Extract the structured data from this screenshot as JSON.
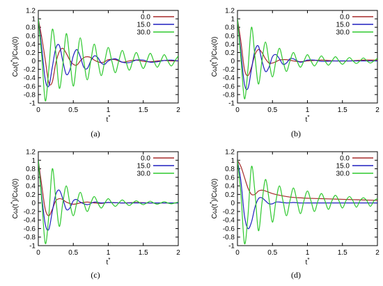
{
  "chart_data": [
    {
      "panel": "(a)",
      "type": "line",
      "xlabel": "t*",
      "ylabel": "Cω(t*)/Cω(0)",
      "xlim": [
        0,
        2
      ],
      "ylim": [
        -1,
        1.2
      ],
      "x_ticks": [
        "0",
        "0.5",
        "1",
        "1.5",
        "2"
      ],
      "y_ticks": [
        "-1",
        "-0.8",
        "-0.6",
        "-0.4",
        "-0.2",
        "0",
        "0.2",
        "0.4",
        "0.6",
        "0.8",
        "1",
        "1.2"
      ],
      "legend_position": "top-right",
      "grid": false,
      "series": [
        {
          "name": "0.0",
          "color": "#a52a2a",
          "x": [
            0,
            0.05,
            0.1,
            0.15,
            0.2,
            0.25,
            0.3,
            0.35,
            0.4,
            0.45,
            0.5,
            0.55,
            0.6,
            0.65,
            0.7,
            0.75,
            0.8,
            0.85,
            0.9,
            0.95,
            1,
            1.1,
            1.2,
            1.3,
            1.4,
            1.5,
            1.6,
            1.7,
            1.8,
            1.9,
            2
          ],
          "y": [
            1,
            0.55,
            0.02,
            -0.52,
            -0.5,
            -0.05,
            0.22,
            0.3,
            0.18,
            0.02,
            -0.08,
            -0.1,
            0.0,
            0.08,
            0.1,
            0.08,
            0.02,
            -0.02,
            -0.04,
            -0.02,
            0.03,
            0.03,
            -0.03,
            0.0,
            0.02,
            -0.01,
            -0.02,
            0.0,
            0.01,
            0.0,
            0.0
          ]
        },
        {
          "name": "15.0",
          "color": "#1f1fbf",
          "x": [
            0,
            0.05,
            0.1,
            0.15,
            0.2,
            0.25,
            0.3,
            0.35,
            0.4,
            0.45,
            0.5,
            0.55,
            0.6,
            0.65,
            0.7,
            0.75,
            0.8,
            0.85,
            0.9,
            0.95,
            1,
            1.1,
            1.2,
            1.3,
            1.4,
            1.5,
            1.6,
            1.7,
            1.8,
            1.9,
            2
          ],
          "y": [
            1,
            0.3,
            -0.45,
            -0.6,
            -0.15,
            0.3,
            0.37,
            0.0,
            -0.32,
            -0.22,
            0.12,
            0.27,
            0.1,
            -0.15,
            -0.18,
            0.0,
            0.12,
            0.08,
            -0.05,
            -0.08,
            0.0,
            0.05,
            -0.03,
            -0.04,
            0.02,
            0.02,
            -0.03,
            -0.02,
            0.01,
            0.02,
            0.0
          ]
        },
        {
          "name": "30.0",
          "color": "#2ec82e",
          "x": [
            0,
            0.05,
            0.1,
            0.15,
            0.2,
            0.25,
            0.3,
            0.35,
            0.4,
            0.45,
            0.5,
            0.55,
            0.6,
            0.65,
            0.7,
            0.75,
            0.8,
            0.85,
            0.9,
            0.95,
            1,
            1.05,
            1.1,
            1.15,
            1.2,
            1.25,
            1.3,
            1.35,
            1.4,
            1.45,
            1.5,
            1.55,
            1.6,
            1.65,
            1.7,
            1.75,
            1.8,
            1.85,
            1.9,
            1.95,
            2
          ],
          "y": [
            1,
            0.1,
            -0.95,
            -0.2,
            0.75,
            0.2,
            -0.65,
            -0.1,
            0.65,
            0.05,
            -0.6,
            0.0,
            0.55,
            0.0,
            -0.45,
            0.0,
            0.4,
            0.0,
            -0.35,
            0.0,
            0.32,
            0.0,
            -0.28,
            0.0,
            0.25,
            0.0,
            -0.22,
            0.0,
            0.2,
            0.0,
            -0.18,
            0.0,
            0.18,
            0.0,
            -0.15,
            0.0,
            0.15,
            0.0,
            -0.12,
            0.0,
            0.12
          ]
        }
      ]
    },
    {
      "panel": "(b)",
      "type": "line",
      "xlabel": "t*",
      "ylabel": "Cω(t*)/Cω(0)",
      "xlim": [
        0,
        2
      ],
      "ylim": [
        -1,
        1.2
      ],
      "x_ticks": [
        "0",
        "0.5",
        "1",
        "1.5",
        "2"
      ],
      "y_ticks": [
        "-1",
        "-0.8",
        "-0.6",
        "-0.4",
        "-0.2",
        "0",
        "0.2",
        "0.4",
        "0.6",
        "0.8",
        "1",
        "1.2"
      ],
      "legend_position": "top-right",
      "grid": false,
      "series": [
        {
          "name": "0.0",
          "color": "#a52a2a",
          "x": [
            0,
            0.05,
            0.1,
            0.15,
            0.2,
            0.25,
            0.3,
            0.35,
            0.4,
            0.45,
            0.5,
            0.55,
            0.6,
            0.7,
            0.8,
            0.9,
            1,
            1.2,
            1.4,
            1.6,
            1.8,
            2
          ],
          "y": [
            1,
            0.45,
            -0.2,
            -0.35,
            -0.15,
            0.15,
            0.27,
            0.2,
            0.05,
            -0.05,
            -0.05,
            -0.02,
            0.02,
            0.03,
            0.0,
            -0.02,
            0.0,
            0.02,
            0.0,
            0.0,
            0.02,
            0.02
          ]
        },
        {
          "name": "15.0",
          "color": "#1f1fbf",
          "x": [
            0,
            0.05,
            0.1,
            0.15,
            0.2,
            0.25,
            0.3,
            0.35,
            0.4,
            0.45,
            0.5,
            0.55,
            0.6,
            0.65,
            0.7,
            0.75,
            0.8,
            0.9,
            1,
            1.1,
            1.2,
            1.4,
            1.6,
            1.8,
            2
          ],
          "y": [
            1,
            0.2,
            -0.55,
            -0.65,
            -0.2,
            0.25,
            0.35,
            0.0,
            -0.25,
            -0.15,
            0.1,
            0.15,
            0.05,
            -0.08,
            -0.05,
            0.05,
            0.05,
            -0.03,
            0.02,
            0.02,
            -0.01,
            0.0,
            0.0,
            0.0,
            0.0
          ]
        },
        {
          "name": "30.0",
          "color": "#2ec82e",
          "x": [
            0,
            0.05,
            0.1,
            0.15,
            0.2,
            0.25,
            0.3,
            0.35,
            0.4,
            0.45,
            0.5,
            0.55,
            0.6,
            0.65,
            0.7,
            0.75,
            0.8,
            0.85,
            0.9,
            0.95,
            1,
            1.05,
            1.1,
            1.15,
            1.2,
            1.25,
            1.3,
            1.35,
            1.4,
            1.45,
            1.5,
            1.55,
            1.6,
            1.65,
            1.7,
            1.75,
            1.8,
            1.85,
            1.9,
            1.95,
            2
          ],
          "y": [
            1,
            0.05,
            -0.9,
            -0.2,
            0.8,
            0.1,
            -0.55,
            0.0,
            0.45,
            0.0,
            -0.38,
            0.0,
            0.3,
            0.0,
            -0.25,
            0.0,
            0.2,
            0.0,
            -0.15,
            0.0,
            0.15,
            0.0,
            -0.12,
            0.0,
            0.12,
            0.0,
            -0.1,
            0.0,
            0.1,
            0.0,
            -0.08,
            0.0,
            0.08,
            0.0,
            -0.06,
            0.0,
            0.07,
            0.0,
            -0.05,
            0.0,
            0.06
          ]
        }
      ]
    },
    {
      "panel": "(c)",
      "type": "line",
      "xlabel": "t*",
      "ylabel": "Cω(t*)/Cω(0)",
      "xlim": [
        0,
        2
      ],
      "ylim": [
        -1,
        1.2
      ],
      "x_ticks": [
        "0",
        "0.5",
        "1",
        "1.5",
        "2"
      ],
      "y_ticks": [
        "-1",
        "-0.8",
        "-0.6",
        "-0.4",
        "-0.2",
        "0",
        "0.2",
        "0.4",
        "0.6",
        "0.8",
        "1",
        "1.2"
      ],
      "legend_position": "top-right",
      "grid": false,
      "series": [
        {
          "name": "0.0",
          "color": "#a52a2a",
          "x": [
            0,
            0.05,
            0.1,
            0.15,
            0.2,
            0.25,
            0.3,
            0.35,
            0.4,
            0.5,
            0.6,
            0.7,
            0.8,
            0.9,
            1,
            1.2,
            1.4,
            1.6,
            1.8,
            2
          ],
          "y": [
            1,
            0.4,
            -0.15,
            -0.3,
            -0.15,
            0.05,
            0.1,
            0.08,
            0.02,
            -0.03,
            0.0,
            0.02,
            0.0,
            -0.01,
            0.01,
            0.0,
            0.01,
            0.0,
            0.0,
            0.0
          ]
        },
        {
          "name": "15.0",
          "color": "#1f1fbf",
          "x": [
            0,
            0.05,
            0.1,
            0.15,
            0.2,
            0.25,
            0.3,
            0.35,
            0.4,
            0.45,
            0.5,
            0.55,
            0.6,
            0.7,
            0.8,
            0.9,
            1,
            1.2,
            1.4,
            1.6,
            1.8,
            2
          ],
          "y": [
            1,
            0.15,
            -0.5,
            -0.62,
            -0.2,
            0.2,
            0.3,
            0.1,
            -0.15,
            -0.12,
            0.05,
            0.08,
            0.02,
            -0.04,
            0.02,
            0.0,
            0.01,
            0.0,
            0.0,
            0.0,
            0.0,
            0.0
          ]
        },
        {
          "name": "30.0",
          "color": "#2ec82e",
          "x": [
            0,
            0.05,
            0.1,
            0.15,
            0.2,
            0.25,
            0.3,
            0.35,
            0.4,
            0.45,
            0.5,
            0.55,
            0.6,
            0.65,
            0.7,
            0.75,
            0.8,
            0.85,
            0.9,
            0.95,
            1,
            1.05,
            1.1,
            1.15,
            1.2,
            1.25,
            1.3,
            1.35,
            1.4,
            1.45,
            1.5,
            1.55,
            1.6,
            1.65,
            1.7,
            1.75,
            1.8,
            1.85,
            1.9,
            1.95,
            2
          ],
          "y": [
            1,
            0.05,
            -0.95,
            -0.3,
            0.8,
            0.1,
            -0.55,
            0.0,
            0.4,
            0.0,
            -0.3,
            0.0,
            0.25,
            0.0,
            -0.2,
            0.0,
            0.15,
            0.0,
            -0.12,
            0.0,
            0.1,
            0.0,
            -0.08,
            0.0,
            0.07,
            0.0,
            -0.06,
            0.0,
            0.05,
            0.0,
            -0.04,
            0.0,
            0.04,
            0.0,
            -0.03,
            0.0,
            0.03,
            0.0,
            -0.02,
            0.0,
            0.02
          ]
        }
      ]
    },
    {
      "panel": "(d)",
      "type": "line",
      "xlabel": "t*",
      "ylabel": "Cω(t*)/Cω(0)",
      "xlim": [
        0,
        2
      ],
      "ylim": [
        -1,
        1.2
      ],
      "x_ticks": [
        "0",
        "0.5",
        "1",
        "1.5",
        "2"
      ],
      "y_ticks": [
        "-1",
        "-0.8",
        "-0.6",
        "-0.4",
        "-0.2",
        "0",
        "0.2",
        "0.4",
        "0.6",
        "0.8",
        "1",
        "1.2"
      ],
      "legend_position": "top-right",
      "grid": false,
      "series": [
        {
          "name": "0.0",
          "color": "#a52a2a",
          "x": [
            0,
            0.05,
            0.1,
            0.15,
            0.2,
            0.25,
            0.3,
            0.35,
            0.4,
            0.5,
            0.6,
            0.7,
            0.8,
            0.9,
            1,
            1.2,
            1.4,
            1.6,
            1.8,
            2
          ],
          "y": [
            1,
            0.85,
            0.6,
            0.35,
            0.2,
            0.2,
            0.28,
            0.3,
            0.28,
            0.22,
            0.18,
            0.15,
            0.13,
            0.12,
            0.11,
            0.1,
            0.09,
            0.08,
            0.07,
            0.06
          ]
        },
        {
          "name": "15.0",
          "color": "#1f1fbf",
          "x": [
            0,
            0.05,
            0.1,
            0.15,
            0.2,
            0.25,
            0.3,
            0.35,
            0.4,
            0.45,
            0.5,
            0.55,
            0.6,
            0.7,
            0.8,
            0.9,
            1,
            1.2,
            1.4,
            1.6,
            1.8,
            2
          ],
          "y": [
            1,
            0.5,
            -0.3,
            -0.6,
            -0.45,
            -0.1,
            0.1,
            0.12,
            0.05,
            -0.02,
            -0.02,
            0.02,
            0.02,
            0.0,
            0.01,
            0.0,
            0.0,
            0.0,
            0.0,
            0.0,
            0.0,
            0.0
          ]
        },
        {
          "name": "30.0",
          "color": "#2ec82e",
          "x": [
            0,
            0.05,
            0.1,
            0.15,
            0.2,
            0.25,
            0.3,
            0.35,
            0.4,
            0.45,
            0.5,
            0.55,
            0.6,
            0.65,
            0.7,
            0.75,
            0.8,
            0.85,
            0.9,
            0.95,
            1,
            1.05,
            1.1,
            1.15,
            1.2,
            1.25,
            1.3,
            1.35,
            1.4,
            1.45,
            1.5,
            1.55,
            1.6,
            1.65,
            1.7,
            1.75,
            1.8,
            1.85,
            1.9,
            1.95,
            2
          ],
          "y": [
            1,
            0.2,
            -0.95,
            -0.3,
            0.85,
            0.25,
            -0.65,
            0.0,
            0.55,
            0.1,
            -0.45,
            0.05,
            0.4,
            0.05,
            -0.3,
            0.05,
            0.35,
            0.05,
            -0.25,
            0.05,
            0.28,
            0.05,
            -0.2,
            0.05,
            0.22,
            0.05,
            -0.15,
            0.05,
            0.18,
            0.05,
            -0.12,
            0.05,
            0.15,
            0.05,
            -0.1,
            0.05,
            0.12,
            0.05,
            -0.08,
            0.05,
            0.1
          ]
        }
      ]
    }
  ]
}
